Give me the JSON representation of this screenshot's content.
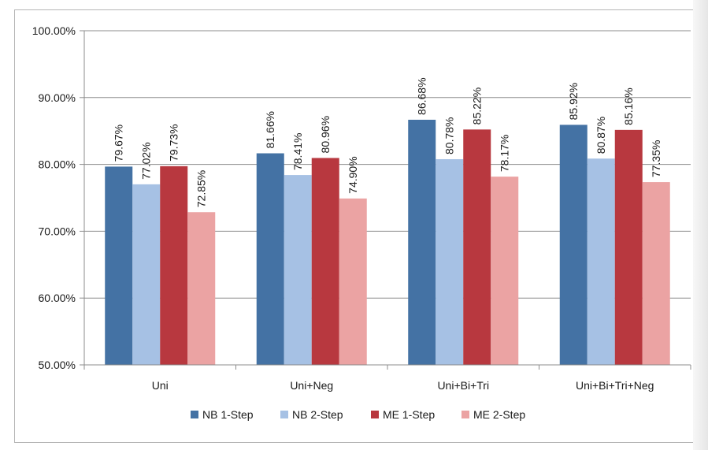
{
  "chart_data": {
    "type": "bar",
    "categories": [
      "Uni",
      "Uni+Neg",
      "Uni+Bi+Tri",
      "Uni+Bi+Tri+Neg"
    ],
    "series": [
      {
        "name": "NB 1-Step",
        "color": "#4472a4",
        "values": [
          79.67,
          81.66,
          86.68,
          85.92
        ],
        "labels": [
          "79.67%",
          "81.66%",
          "86.68%",
          "85.92%"
        ]
      },
      {
        "name": "NB 2-Step",
        "color": "#a6c1e4",
        "values": [
          77.02,
          78.41,
          80.78,
          80.87
        ],
        "labels": [
          "77.02%",
          "78.41%",
          "80.78%",
          "80.87%"
        ]
      },
      {
        "name": "ME 1-Step",
        "color": "#b8383f",
        "values": [
          79.73,
          80.96,
          85.22,
          85.16
        ],
        "labels": [
          "79.73%",
          "80.96%",
          "85.22%",
          "85.16%"
        ]
      },
      {
        "name": "ME 2-Step",
        "color": "#eba3a3",
        "values": [
          72.85,
          74.9,
          78.17,
          77.35
        ],
        "labels": [
          "72.85%",
          "74.90%",
          "78.17%",
          "77.35%"
        ]
      }
    ],
    "ylim": [
      50,
      100
    ],
    "yticks": [
      50,
      60,
      70,
      80,
      90,
      100
    ],
    "ytick_labels": [
      "50.00%",
      "60.00%",
      "70.00%",
      "80.00%",
      "90.00%",
      "100.00%"
    ],
    "title": "",
    "xlabel": "",
    "ylabel": "",
    "grid": "horizontal",
    "legend_position": "bottom",
    "data_labels_rotated": true
  }
}
